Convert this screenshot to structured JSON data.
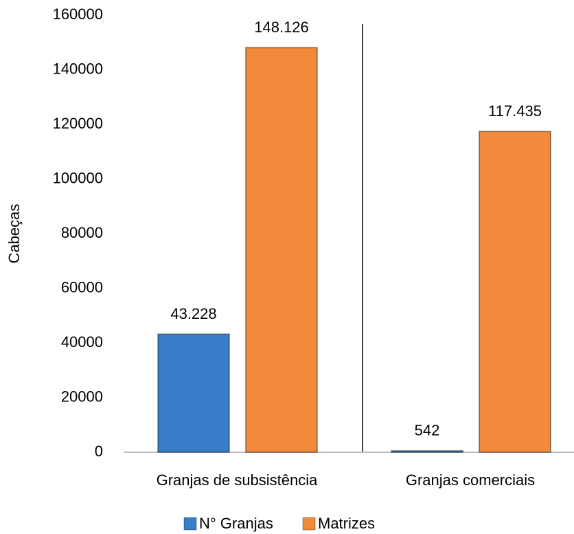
{
  "chart_data": {
    "type": "bar",
    "y_label": "Cabeças",
    "categories": [
      "Granjas de subsistência",
      "Granjas comerciais"
    ],
    "series": [
      {
        "name": "N° Granjas",
        "color": "#3a7dc9",
        "values": [
          43228,
          542
        ],
        "value_labels": [
          "43.228",
          "542"
        ]
      },
      {
        "name": "Matrizes",
        "color": "#f28a3c",
        "values": [
          148126,
          117435
        ],
        "value_labels": [
          "148.126",
          "117.435"
        ]
      }
    ],
    "ylim": [
      0,
      160000
    ],
    "yticks": [
      0,
      20000,
      40000,
      60000,
      80000,
      100000,
      120000,
      140000,
      160000
    ],
    "legend": "bottom"
  }
}
